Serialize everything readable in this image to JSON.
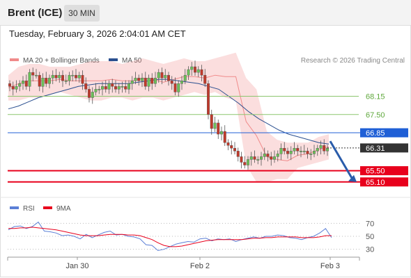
{
  "header": {
    "title": "Brent (ICE)",
    "interval": "30 MIN"
  },
  "timestamp": "Tuesday, February 3, 2026 2:04:01 AM CET",
  "colors": {
    "bollinger": "#f08a8a",
    "ma50": "#2a4f8f",
    "support": "#e8001c",
    "resistance": "#8cc66e",
    "pivot": "#1f5fd6",
    "rsi": "#5b7fd6",
    "rsi_ma": "#e8001c"
  },
  "legend": [
    {
      "label": "MA 20 + Bollinger Bands"
    },
    {
      "label": "MA 50"
    }
  ],
  "credit": "Research © 2026 Trading Central",
  "chart_data": [
    {
      "type": "candlestick",
      "ylim": [
        64.6,
        69.3
      ],
      "x_ticks": [
        "Jan 30",
        "Feb 2",
        "Feb 3"
      ],
      "levels": [
        {
          "value": 68.15,
          "label": "68.15",
          "kind": "resistance"
        },
        {
          "value": 67.5,
          "label": "67.50",
          "kind": "resistance"
        },
        {
          "value": 66.85,
          "label": "66.85",
          "kind": "pivot"
        },
        {
          "value": 65.5,
          "label": "65.50",
          "kind": "support"
        },
        {
          "value": 65.1,
          "label": "65.10",
          "kind": "support"
        }
      ],
      "last_price": {
        "value": 66.31,
        "label": "66.31"
      },
      "projection_arrow": {
        "from": 66.55,
        "to": 65.1,
        "direction": "down"
      },
      "closes": [
        68.5,
        68.4,
        68.5,
        68.6,
        68.7,
        68.5,
        69.0,
        68.9,
        68.9,
        68.5,
        68.8,
        68.6,
        68.8,
        68.9,
        68.8,
        68.9,
        68.7,
        68.7,
        68.9,
        68.9,
        68.8,
        68.9,
        68.6,
        68.4,
        68.1,
        68.3,
        68.4,
        68.4,
        68.5,
        68.4,
        68.6,
        68.5,
        68.4,
        68.5,
        68.5,
        68.4,
        68.6,
        68.7,
        68.8,
        68.7,
        68.8,
        68.5,
        68.8,
        68.6,
        68.8,
        69.0,
        68.8,
        68.9,
        68.7,
        68.6,
        68.3,
        68.6,
        68.7,
        68.9,
        69.1,
        69.2,
        69.0,
        69.1,
        68.9,
        68.6,
        67.5,
        67.0,
        67.2,
        66.8,
        66.9,
        66.5,
        66.4,
        66.3,
        66.2,
        66.0,
        65.8,
        65.7,
        65.9,
        66.0,
        65.9,
        65.9,
        66.0,
        66.1,
        66.0,
        65.9,
        66.0,
        66.1,
        66.3,
        66.2,
        66.1,
        66.2,
        66.3,
        66.2,
        66.2,
        66.2,
        66.1,
        66.1,
        66.2,
        66.3,
        66.4,
        66.2,
        66.3
      ],
      "bollinger": {
        "upper": [
          68.9,
          69.2,
          69.3,
          69.3,
          69.2,
          69.2,
          69.2,
          69.3,
          69.4,
          69.4,
          69.4,
          69.3,
          69.4,
          69.5,
          69.4,
          69.3,
          69.4,
          69.5,
          69.4,
          69.4,
          69.5,
          69.6,
          69.7,
          68.8,
          68.4,
          66.9,
          66.6,
          66.5,
          66.5,
          66.5,
          66.7,
          66.8
        ],
        "lower": [
          68.0,
          68.0,
          68.1,
          68.1,
          68.2,
          68.3,
          68.2,
          68.1,
          68.0,
          68.0,
          68.1,
          68.1,
          68.0,
          68.1,
          68.1,
          68.0,
          68.1,
          68.2,
          68.3,
          68.2,
          68.3,
          68.1,
          68.0,
          65.7,
          65.1,
          65.1,
          65.2,
          65.2,
          65.6,
          65.7,
          65.8,
          65.9
        ],
        "middle": [
          68.45,
          68.6,
          68.7,
          68.7,
          68.7,
          68.75,
          68.7,
          68.7,
          68.7,
          68.7,
          68.75,
          68.7,
          68.7,
          68.8,
          68.75,
          68.65,
          68.75,
          68.85,
          68.85,
          68.8,
          68.9,
          68.85,
          68.85,
          67.25,
          66.75,
          66.0,
          65.9,
          65.85,
          66.05,
          66.1,
          66.25,
          66.35
        ]
      },
      "ma50": [
        67.7,
        67.8,
        67.95,
        68.1,
        68.2,
        68.3,
        68.4,
        68.5,
        68.55,
        68.6,
        68.6,
        68.6,
        68.6,
        68.65,
        68.7,
        68.75,
        68.75,
        68.7,
        68.65,
        68.6,
        68.5,
        68.4,
        68.15,
        67.9,
        67.6,
        67.35,
        67.15,
        66.95,
        66.8,
        66.7,
        66.6,
        66.5,
        66.45
      ]
    },
    {
      "type": "line",
      "series": [
        {
          "name": "RSI"
        },
        {
          "name": "9MA"
        }
      ],
      "ylim": [
        20,
        80
      ],
      "y_ticks": [
        70,
        50,
        30
      ],
      "rsi": [
        60,
        65,
        66,
        62,
        65,
        72,
        58,
        57,
        55,
        51,
        52,
        50,
        46,
        53,
        48,
        52,
        56,
        58,
        52,
        53,
        50,
        49,
        46,
        37,
        36,
        28,
        30,
        34,
        38,
        40,
        42,
        41,
        46,
        47,
        43,
        46,
        45,
        46,
        42,
        45,
        47,
        49,
        47,
        50,
        50,
        52,
        51,
        48,
        47,
        45,
        48,
        50,
        55,
        62,
        48
      ],
      "rsi_ma": [
        62,
        62,
        63,
        63,
        64,
        63,
        62,
        61,
        60,
        58,
        56,
        54,
        52,
        51,
        51,
        51,
        52,
        53,
        53,
        53,
        52,
        52,
        51,
        48,
        45,
        40,
        36,
        34,
        34,
        35,
        37,
        39,
        41,
        43,
        44,
        45,
        45,
        45,
        45,
        45,
        46,
        47,
        47,
        48,
        48,
        49,
        49,
        49,
        49,
        48,
        48,
        48,
        49,
        51,
        51
      ]
    }
  ]
}
